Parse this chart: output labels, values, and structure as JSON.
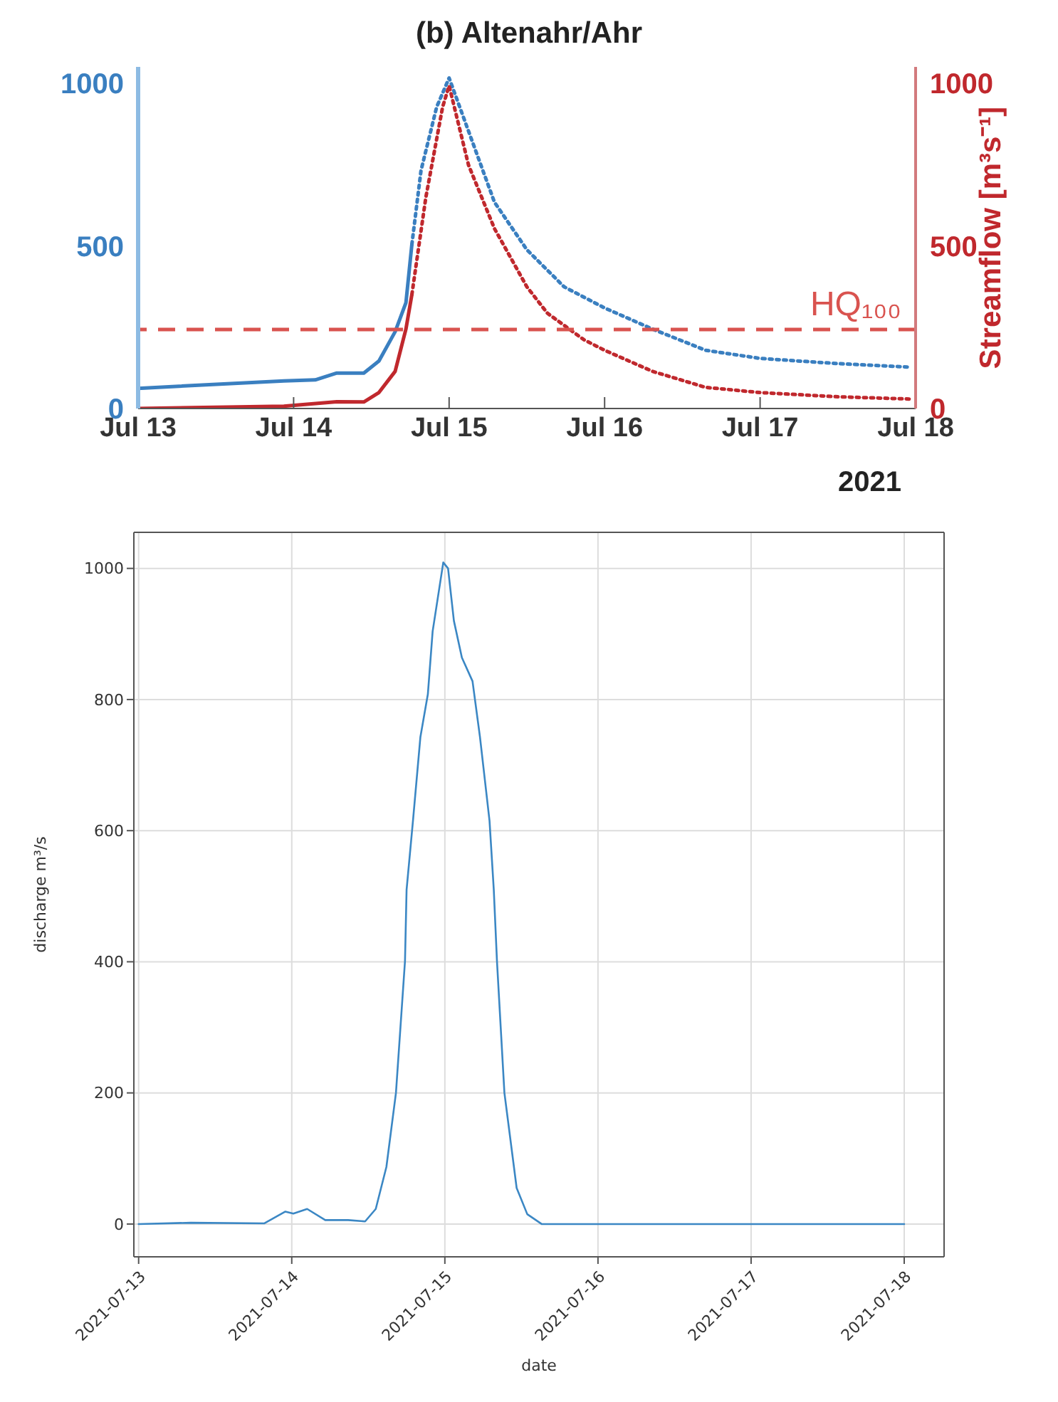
{
  "chart_data": [
    {
      "type": "line",
      "title": "(b) Altenahr/Ahr",
      "y2label": "Streamflow [m³s⁻¹]",
      "annotations": [
        "2021"
      ],
      "xlim": [
        "2021-07-13",
        "2021-07-18"
      ],
      "xticks": [
        {
          "value": "2021-07-13",
          "label": "Jul 13"
        },
        {
          "value": "2021-07-14",
          "label": "Jul 14"
        },
        {
          "value": "2021-07-15",
          "label": "Jul 15"
        },
        {
          "value": "2021-07-16",
          "label": "Jul 16"
        },
        {
          "value": "2021-07-17",
          "label": "Jul 17"
        },
        {
          "value": "2021-07-18",
          "label": "Jul 18"
        }
      ],
      "ylim": [
        0,
        1050
      ],
      "yticks": [
        0,
        500,
        1000
      ],
      "y2lim": [
        0,
        1050
      ],
      "y2ticks": [
        0,
        500,
        1000
      ],
      "ref_lines": [
        {
          "axis": "y2",
          "value": 243,
          "label": "HQ₁₀₀",
          "color": "#d9534f",
          "line_style": "dashed"
        }
      ],
      "series": [
        {
          "color": "#3a7fc0",
          "line_style": "solid",
          "x": [
            "2021-07-13T00:00",
            "2021-07-13T22:30",
            "2021-07-14T03:20",
            "2021-07-14T06:40",
            "2021-07-14T10:50",
            "2021-07-14T13:10",
            "2021-07-14T15:40",
            "2021-07-14T17:20",
            "2021-07-14T18:15"
          ],
          "values": [
            62,
            85,
            88,
            109,
            109,
            146,
            236,
            325,
            504
          ]
        },
        {
          "color": "#3a7fc0",
          "line_style": "dotted",
          "x": [
            "2021-07-14T18:15",
            "2021-07-14T19:40",
            "2021-07-14T22:05",
            "2021-07-15T00:00",
            "2021-07-15T07:00",
            "2021-07-15T12:00",
            "2021-07-15T17:45",
            "2021-07-16T00:00",
            "2021-07-16T07:25",
            "2021-07-16T15:35",
            "2021-07-17T00:00",
            "2021-07-17T12:00",
            "2021-07-17T23:15"
          ],
          "values": [
            504,
            732,
            927,
            1016,
            634,
            488,
            374,
            309,
            244,
            179,
            154,
            138,
            127
          ]
        },
        {
          "color": "#c0282d",
          "line_style": "solid",
          "axis": "y2",
          "x": [
            "2021-07-13T00:00",
            "2021-07-13T22:30",
            "2021-07-14T06:40",
            "2021-07-14T10:50",
            "2021-07-14T13:10",
            "2021-07-14T15:40",
            "2021-07-14T17:20",
            "2021-07-14T18:15"
          ],
          "values": [
            0,
            7,
            21,
            20,
            49,
            114,
            244,
            350
          ]
        },
        {
          "color": "#c0282d",
          "line_style": "dotted",
          "axis": "y2",
          "x": [
            "2021-07-14T18:15",
            "2021-07-14T20:25",
            "2021-07-14T23:00",
            "2021-07-15T00:00",
            "2021-07-15T03:00",
            "2021-07-15T07:00",
            "2021-07-15T12:00",
            "2021-07-15T15:10",
            "2021-07-15T20:50",
            "2021-07-16T00:00",
            "2021-07-16T07:25",
            "2021-07-16T15:35",
            "2021-07-17T00:00",
            "2021-07-17T12:00",
            "2021-07-17T23:15"
          ],
          "values": [
            350,
            650,
            927,
            992,
            748,
            553,
            374,
            293,
            211,
            179,
            114,
            65,
            49,
            36,
            29
          ]
        }
      ]
    },
    {
      "type": "line",
      "xlabel": "date",
      "ylabel": "discharge m³/s",
      "grid": true,
      "xlim": [
        "2021-07-12T23:15",
        "2021-07-18T06:15"
      ],
      "xticks": [
        {
          "value": "2021-07-13",
          "label": "2021-07-13"
        },
        {
          "value": "2021-07-14",
          "label": "2021-07-14"
        },
        {
          "value": "2021-07-15",
          "label": "2021-07-15"
        },
        {
          "value": "2021-07-16",
          "label": "2021-07-16"
        },
        {
          "value": "2021-07-17",
          "label": "2021-07-17"
        },
        {
          "value": "2021-07-18",
          "label": "2021-07-18"
        }
      ],
      "ylim": [
        -50,
        1055
      ],
      "yticks": [
        0,
        200,
        400,
        600,
        800,
        1000
      ],
      "series": [
        {
          "color": "#3b87c4",
          "x": [
            "2021-07-13T00:00",
            "2021-07-13T08:10",
            "2021-07-13T19:40",
            "2021-07-13T23:00",
            "2021-07-14T00:15",
            "2021-07-14T02:25",
            "2021-07-14T05:15",
            "2021-07-14T08:50",
            "2021-07-14T11:30",
            "2021-07-14T13:10",
            "2021-07-14T14:50",
            "2021-07-14T16:20",
            "2021-07-14T17:45",
            "2021-07-14T18:00",
            "2021-07-14T19:00",
            "2021-07-14T20:10",
            "2021-07-14T21:20",
            "2021-07-14T22:05",
            "2021-07-14T23:45",
            "2021-07-15T00:30",
            "2021-07-15T01:25",
            "2021-07-15T02:40",
            "2021-07-15T04:20",
            "2021-07-15T05:30",
            "2021-07-15T07:00",
            "2021-07-15T07:40",
            "2021-07-15T08:10",
            "2021-07-15T09:20",
            "2021-07-15T11:15",
            "2021-07-15T12:55",
            "2021-07-15T15:10",
            "2021-07-18T00:00"
          ],
          "values": [
            0,
            2,
            1,
            19,
            16,
            23,
            6,
            6,
            4,
            23,
            87,
            200,
            401,
            510,
            615,
            743,
            808,
            904,
            1009,
            1000,
            920,
            864,
            828,
            743,
            615,
            510,
            401,
            200,
            55,
            15,
            0,
            0
          ]
        }
      ]
    }
  ]
}
